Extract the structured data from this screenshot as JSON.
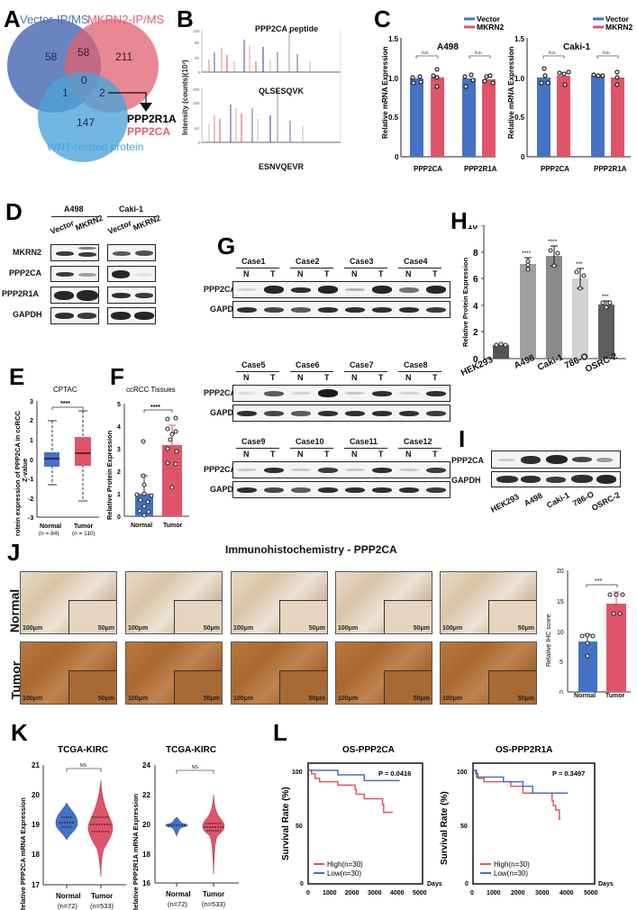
{
  "panels": {
    "A": {
      "label": "A",
      "sets": [
        {
          "name": "Vector-IP/MS",
          "color": "#4f6fb5"
        },
        {
          "name": "MKRN2-IP/MS",
          "color": "#e0606f"
        },
        {
          "name": "WNT-related protein",
          "color": "#4aa3d8"
        }
      ],
      "counts": {
        "vector_only": "58",
        "vector_mkrn2": "58",
        "mkrn2_only": "211",
        "all_three": "0",
        "vector_wnt": "1",
        "mkrn2_wnt": "2",
        "wnt_only": "147"
      },
      "callout": [
        "PPP2R1A",
        "PPP2CA"
      ]
    },
    "B": {
      "label": "B",
      "title": "PPP2CA peptide",
      "ylabel": "Intensity (counts)(10³)",
      "peptides": [
        "QLSESQVK",
        "ESNVQEVR"
      ],
      "top_yticks": [
        "0",
        "40",
        "80",
        "120"
      ],
      "bottom_yticks": [
        "0",
        "50",
        "100",
        "150",
        "200"
      ]
    },
    "C": {
      "label": "C"
    },
    "D": {
      "label": "D",
      "cell_lines": [
        "A498",
        "Caki-1"
      ],
      "lanes": [
        "Vector",
        "MKRN2"
      ],
      "rows": [
        "MKRN2",
        "PPP2CA",
        "PPP2R1A",
        "GAPDH"
      ]
    },
    "E": {
      "label": "E"
    },
    "F": {
      "label": "F"
    },
    "G": {
      "label": "G",
      "groups": [
        {
          "cases": [
            "Case1",
            "Case2",
            "Case3",
            "Case4"
          ]
        },
        {
          "cases": [
            "Case5",
            "Case6",
            "Case7",
            "Case8"
          ]
        },
        {
          "cases": [
            "Case9",
            "Case10",
            "Case11",
            "Case12"
          ]
        }
      ],
      "lane_labels": [
        "N",
        "T"
      ],
      "rows": [
        "PPP2CA",
        "GAPDH"
      ]
    },
    "H": {
      "label": "H"
    },
    "I": {
      "label": "I",
      "rows": [
        "PPP2CA",
        "GAPDH"
      ],
      "lanes": [
        "HEK293",
        "A498",
        "Caki-1",
        "786-O",
        "OSRC-2"
      ]
    },
    "J": {
      "label": "J",
      "title": "Immunohistochemistry - PPP2CA",
      "row_labels": [
        "Normal",
        "Tumor"
      ],
      "scale_large": "100μm",
      "scale_small": "50μm"
    },
    "K": {
      "label": "K"
    },
    "L": {
      "label": "L"
    }
  },
  "chart_data": [
    {
      "id": "C-A498",
      "type": "bar",
      "title": "A498",
      "categories": [
        "PPP2CA",
        "PPP2R1A"
      ],
      "series": [
        {
          "name": "Vector",
          "color": "#4472c4",
          "values": [
            1.0,
            1.0
          ]
        },
        {
          "name": "MKRN2",
          "color": "#e05469",
          "values": [
            1.01,
            0.99
          ]
        }
      ],
      "ylabel": "Relative mRNA Expression",
      "ylim": [
        0,
        1.5
      ],
      "yticks": [
        "0",
        "0.5",
        "1.0",
        "1.5"
      ],
      "significance": [
        "n.s.",
        "n.s."
      ],
      "legend": [
        "Vector",
        "MKRN2"
      ]
    },
    {
      "id": "C-Caki1",
      "type": "bar",
      "title": "Caki-1",
      "categories": [
        "PPP2CA",
        "PPP2R1A"
      ],
      "series": [
        {
          "name": "Vector",
          "color": "#4472c4",
          "values": [
            1.01,
            1.03
          ]
        },
        {
          "name": "MKRN2",
          "color": "#e05469",
          "values": [
            1.03,
            1.01
          ]
        }
      ],
      "ylabel": "Relative mRNA Expression",
      "ylim": [
        0,
        1.5
      ],
      "yticks": [
        "0",
        "0.5",
        "1.0",
        "1.5"
      ],
      "significance": [
        "n.s.",
        "n.s."
      ],
      "legend": [
        "Vector",
        "MKRN2"
      ]
    },
    {
      "id": "E",
      "type": "box",
      "title": "CPTAC",
      "categories": [
        "Normal\n(n = 84)",
        "Tumor\n(n = 110)"
      ],
      "cat_top": [
        "Normal",
        "Tumor"
      ],
      "cat_bottom": [
        "(n = 84)",
        "(n = 110)"
      ],
      "boxes": [
        {
          "min": -1.3,
          "q1": -0.6,
          "median": -0.3,
          "q3": 0.1,
          "max": 1.0,
          "color": "#4472c4"
        },
        {
          "min": -2.1,
          "q1": -0.55,
          "median": 0.0,
          "q3": 0.8,
          "max": 2.55,
          "color": "#e05469"
        }
      ],
      "ylabel": "Protein expression of PPP2CA in ccRCC",
      "ylabel2": "Z-value",
      "ylim": [
        -3,
        3
      ],
      "yticks": [
        "-3",
        "-2",
        "-1",
        "0",
        "1",
        "2",
        "3"
      ],
      "significance": "****"
    },
    {
      "id": "F",
      "type": "bar",
      "title": "ccRCC Tissues",
      "categories": [
        "Normal",
        "Tumor"
      ],
      "values": [
        1.0,
        3.15
      ],
      "errors": [
        0.85,
        0.9
      ],
      "colors": [
        "#4472c4",
        "#e05469"
      ],
      "points": [
        [
          3.3,
          1.8,
          1.4,
          1.0,
          0.95,
          0.9,
          0.7,
          0.6,
          0.5,
          0.3,
          0.2,
          0.05
        ],
        [
          4.3,
          4.25,
          3.7,
          3.6,
          3.5,
          3.35,
          3.0,
          2.85,
          2.35,
          2.3,
          1.25
        ]
      ],
      "ylabel": "Relative Protein Expression",
      "ylim": [
        0,
        5
      ],
      "yticks": [
        "0",
        "1",
        "2",
        "3",
        "4",
        "5"
      ],
      "significance": "****"
    },
    {
      "id": "H",
      "type": "bar",
      "categories": [
        "HEK293",
        "A498",
        "Caki-1",
        "786-O",
        "OSRC-2"
      ],
      "values": [
        1.0,
        7.1,
        7.7,
        6.0,
        4.1
      ],
      "errors": [
        0.1,
        0.45,
        0.75,
        0.75,
        0.3
      ],
      "colors": [
        "#555555",
        "#a0a0a0",
        "#8a8a8a",
        "#d2d2d2",
        "#5e5e5e"
      ],
      "significance": [
        "",
        "****",
        "****",
        "***",
        "***"
      ],
      "ylabel": "Relative Protein Expression",
      "ylim": [
        0,
        10
      ],
      "yticks": [
        "0",
        "2",
        "4",
        "6",
        "8",
        "10"
      ]
    },
    {
      "id": "J-IHC",
      "type": "bar",
      "categories": [
        "Normal",
        "Tumor"
      ],
      "values": [
        8.3,
        14.5
      ],
      "errors": [
        1.3,
        2.0
      ],
      "colors": [
        "#4472c4",
        "#e05469"
      ],
      "points": [
        [
          9.3,
          9.3,
          9.0,
          8.0,
          5.8
        ],
        [
          16.1,
          16.1,
          16.1,
          12.9,
          12.9
        ]
      ],
      "ylabel": "Relative IHC score",
      "ylim": [
        0,
        20
      ],
      "yticks": [
        "0",
        "5",
        "10",
        "15",
        "20"
      ],
      "significance": "***"
    },
    {
      "id": "K-PPP2CA",
      "type": "violin",
      "title": "TCGA-KIRC",
      "categories": [
        "Normal",
        "Tumor"
      ],
      "cat_bottom": [
        "(n=72)",
        "(n=533)"
      ],
      "violins": [
        {
          "min": 18.8,
          "q1": 19.1,
          "median": 19.25,
          "q3": 19.4,
          "max": 19.7,
          "color": "#4472c4"
        },
        {
          "min": 17.6,
          "q1": 18.95,
          "median": 19.15,
          "q3": 19.4,
          "max": 20.6,
          "color": "#e05469"
        }
      ],
      "ylabel": "Relative PPP2CA mRNA Expression",
      "ylim": [
        17,
        21
      ],
      "yticks": [
        "17",
        "18",
        "19",
        "20",
        "21"
      ],
      "significance": "NS"
    },
    {
      "id": "K-PPP2R1A",
      "type": "violin",
      "title": "TCGA-KIRC",
      "categories": [
        "Normal",
        "Tumor"
      ],
      "cat_bottom": [
        "(n=72)",
        "(n=533)"
      ],
      "violins": [
        {
          "min": 19.2,
          "q1": 19.9,
          "median": 19.95,
          "q3": 20.0,
          "max": 20.5,
          "color": "#4472c4"
        },
        {
          "min": 17.1,
          "q1": 19.65,
          "median": 19.8,
          "q3": 20.0,
          "max": 21.9,
          "color": "#e05469"
        }
      ],
      "ylabel": "Relative PPP2R1A mRNA Expression",
      "ylim": [
        16,
        24
      ],
      "yticks": [
        "16",
        "18",
        "20",
        "22",
        "24"
      ],
      "significance": "NS"
    },
    {
      "id": "L-PPP2CA",
      "type": "line",
      "title": "OS-PPP2CA",
      "pvalue": "P = 0.0416",
      "xlabel": "Days",
      "ylabel": "Survival Rate (%)",
      "xlim": [
        0,
        5000
      ],
      "ylim": [
        0,
        100
      ],
      "xticks": [
        "0",
        "1000",
        "2000",
        "3000",
        "4000",
        "5000"
      ],
      "yticks": [
        "0",
        "50",
        "100"
      ],
      "series": [
        {
          "name": "High(n=30)",
          "color": "#e05469",
          "x": [
            0,
            150,
            150,
            300,
            300,
            500,
            500,
            1300,
            1300,
            2050,
            2050,
            2100,
            2100,
            2450,
            2450,
            3250,
            3250,
            3300,
            3300,
            3700
          ],
          "y": [
            100,
            100,
            97,
            97,
            93,
            93,
            90,
            90,
            87,
            87,
            83,
            83,
            79,
            79,
            75,
            75,
            70,
            70,
            63,
            63
          ]
        },
        {
          "name": "Low(n=30)",
          "color": "#4472c4",
          "x": [
            0,
            1300,
            1300,
            2450,
            2450,
            4000
          ],
          "y": [
            100,
            100,
            96,
            96,
            91,
            91
          ]
        }
      ]
    },
    {
      "id": "L-PPP2R1A",
      "type": "line",
      "title": "OS-PPP2R1A",
      "pvalue": "P = 0.3497",
      "xlabel": "Days",
      "ylabel": "Survival Rate (%)",
      "xlim": [
        0,
        5000
      ],
      "ylim": [
        0,
        100
      ],
      "xticks": [
        "0",
        "1000",
        "2000",
        "3000",
        "4000",
        "5000"
      ],
      "yticks": [
        "0",
        "50",
        "100"
      ],
      "series": [
        {
          "name": "High(n=30)",
          "color": "#e05469",
          "x": [
            0,
            100,
            100,
            200,
            200,
            450,
            450,
            1550,
            1550,
            2050,
            2050,
            3250,
            3250,
            3300,
            3300,
            3400,
            3400,
            3550,
            3550,
            3600
          ],
          "y": [
            100,
            100,
            97,
            97,
            93,
            93,
            90,
            90,
            86,
            86,
            80,
            80,
            73,
            73,
            69,
            69,
            65,
            65,
            57,
            57
          ]
        },
        {
          "name": "Low(n=30)",
          "color": "#4472c4",
          "x": [
            0,
            150,
            150,
            1250,
            1250,
            2050,
            2050,
            2450,
            2450,
            3900
          ],
          "y": [
            100,
            100,
            94,
            94,
            90,
            90,
            86,
            86,
            80,
            80
          ]
        }
      ]
    }
  ]
}
